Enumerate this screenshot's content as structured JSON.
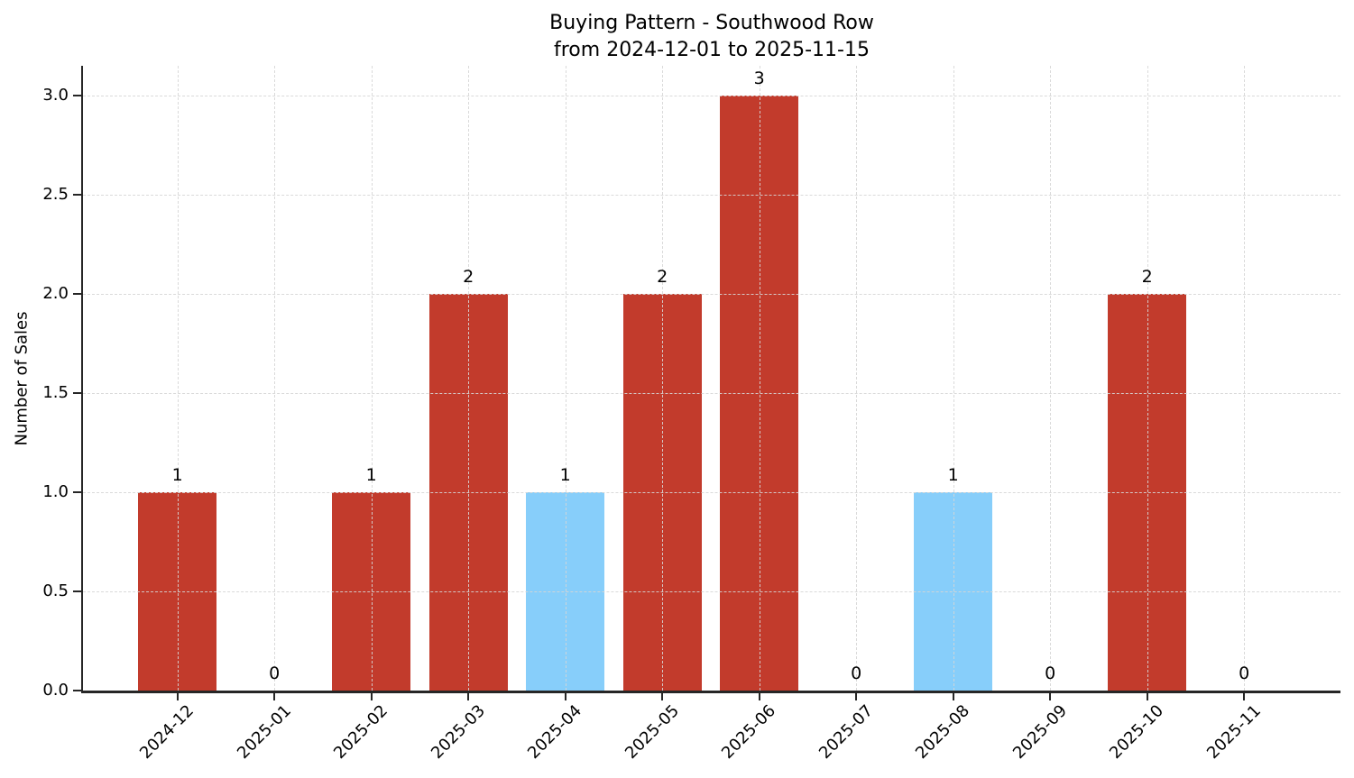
{
  "figure": {
    "title_line1": "Buying Pattern - Southwood Row",
    "title_line2": "from 2024-12-01 to 2025-11-15"
  },
  "chart_data": {
    "type": "bar",
    "title": "Buying Pattern - Southwood Row\nfrom 2024-12-01 to 2025-11-15",
    "xlabel": "",
    "ylabel": "Number of Sales",
    "categories": [
      "2024-12",
      "2025-01",
      "2025-02",
      "2025-03",
      "2025-04",
      "2025-05",
      "2025-06",
      "2025-07",
      "2025-08",
      "2025-09",
      "2025-10",
      "2025-11"
    ],
    "values": [
      1,
      0,
      1,
      2,
      1,
      2,
      3,
      0,
      1,
      0,
      2,
      0
    ],
    "value_labels": [
      "1",
      "0",
      "1",
      "2",
      "1",
      "2",
      "3",
      "0",
      "1",
      "0",
      "2",
      "0"
    ],
    "bar_colors": [
      "#C23B2C",
      "#C23B2C",
      "#C23B2C",
      "#C23B2C",
      "#87CEFA",
      "#C23B2C",
      "#C23B2C",
      "#C23B2C",
      "#87CEFA",
      "#C23B2C",
      "#C23B2C",
      "#C23B2C"
    ],
    "accent_colors": {
      "red": "#C23B2C",
      "blue": "#87CEFA"
    },
    "ylim": [
      0,
      3.15
    ],
    "ytick_values": [
      0,
      0.5,
      1,
      1.5,
      2,
      2.5,
      3
    ],
    "ytick_labels": [
      "0.0",
      "0.5",
      "1.0",
      "1.5",
      "2.0",
      "2.5",
      "3.0"
    ],
    "grid": true,
    "grid_style": "dashed",
    "grid_above_bars": true,
    "legend": "none",
    "x_tick_rotation_deg": 45
  }
}
